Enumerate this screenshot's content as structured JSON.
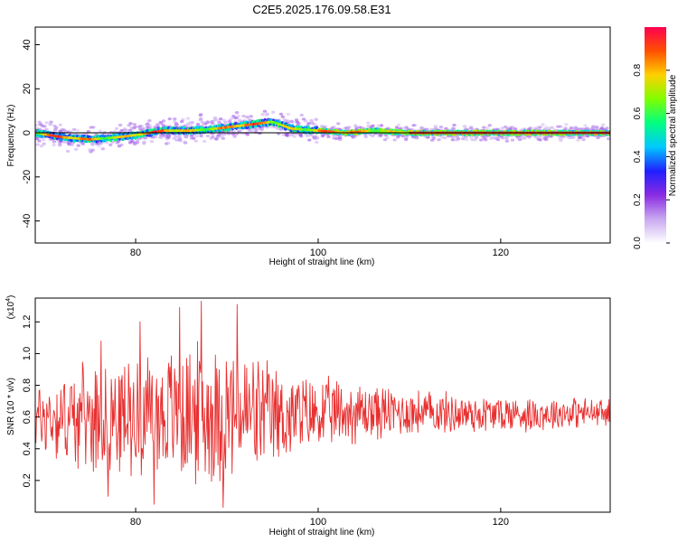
{
  "figure": {
    "title": "C2E5.2025.176.09.58.E31"
  },
  "colorbar": {
    "label": "Normalized spectral amplitude",
    "ticks": [
      "0.0",
      "0.2",
      "0.4",
      "0.6",
      "0.8"
    ],
    "range": [
      0,
      1
    ],
    "colormap": [
      "#ffffff",
      "#c8a8f0",
      "#8a2be2",
      "#2020ff",
      "#00c8ff",
      "#00ff80",
      "#80ff00",
      "#ffd000",
      "#ff5000",
      "#ff0050"
    ]
  },
  "chart_data": [
    {
      "type": "heatmap",
      "title": "",
      "xlabel": "Height of straight line (km)",
      "ylabel": "Frequency (Hz)",
      "xlim": [
        69,
        132
      ],
      "ylim": [
        -50,
        48
      ],
      "x_ticks": [
        "80",
        "100",
        "120"
      ],
      "y_ticks": [
        "40",
        "20",
        "0",
        "-20",
        "-40"
      ],
      "grid": false,
      "ridge": {
        "x": [
          69,
          72,
          75,
          78,
          80,
          83,
          86,
          89,
          91,
          93,
          95,
          97,
          100,
          103,
          106,
          110,
          115,
          120,
          125,
          132
        ],
        "y": [
          0,
          -2,
          -3,
          -2,
          -1,
          1,
          1,
          2,
          3,
          4,
          5,
          2,
          1,
          0,
          1,
          0,
          0,
          0,
          0,
          0
        ]
      },
      "reference_line": {
        "y": 0
      }
    },
    {
      "type": "line",
      "title": "",
      "xlabel": "Height of straight line (km)",
      "ylabel": "SNR (10 * v/v)",
      "scale_label": "(x10",
      "scale_exponent": "4",
      "xlim": [
        69,
        132
      ],
      "ylim": [
        0,
        1.35
      ],
      "x_ticks": [
        "80",
        "100",
        "120"
      ],
      "y_ticks": [
        "0.2",
        "0.4",
        "0.6",
        "0.8",
        "1.0",
        "1.2"
      ],
      "grid": false,
      "series": [
        {
          "color": "#e83030",
          "envelope_x": [
            69,
            74,
            78,
            82,
            85,
            88,
            91,
            94,
            97,
            100,
            104,
            108,
            112,
            116,
            120,
            124,
            128,
            132
          ],
          "envelope_mean": [
            0.6,
            0.6,
            0.6,
            0.62,
            0.62,
            0.62,
            0.62,
            0.6,
            0.6,
            0.62,
            0.63,
            0.63,
            0.63,
            0.62,
            0.62,
            0.62,
            0.63,
            0.62
          ],
          "envelope_amplitude": [
            0.25,
            0.35,
            0.38,
            0.42,
            0.48,
            0.5,
            0.48,
            0.4,
            0.3,
            0.25,
            0.22,
            0.18,
            0.15,
            0.14,
            0.13,
            0.12,
            0.11,
            0.1
          ],
          "peaks": [
            [
              87.2,
              1.33
            ],
            [
              91.1,
              1.31
            ],
            [
              84.8,
              1.29
            ],
            [
              80.5,
              1.2
            ],
            [
              76.2,
              1.08
            ],
            [
              89.6,
              0.03
            ],
            [
              82.0,
              0.05
            ],
            [
              77.0,
              0.1
            ]
          ]
        }
      ]
    }
  ]
}
